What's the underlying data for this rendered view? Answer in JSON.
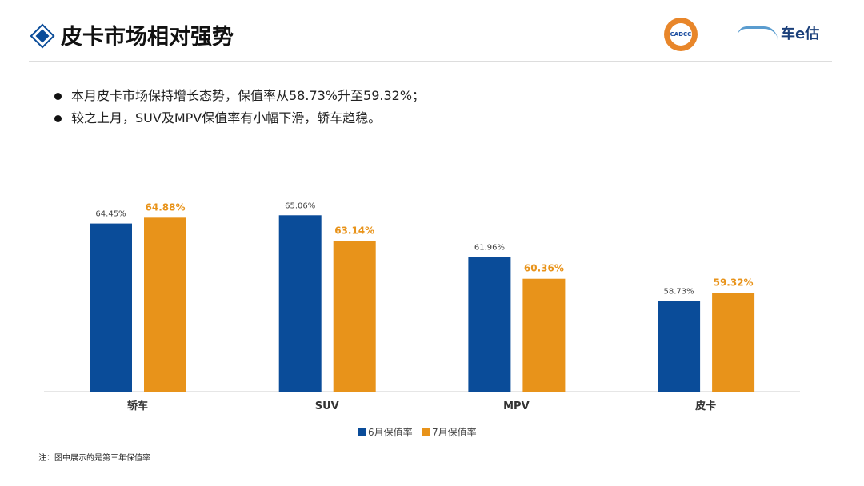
{
  "header": {
    "title": "皮卡市场相对强势",
    "logo1_text": "CADCC",
    "logo2_text": "车e估"
  },
  "bullets": [
    "本月皮卡市场保持增长态势，保值率从58.73%升至59.32%；",
    "较之上月，SUV及MPV保值率有小幅下滑，轿车趋稳。"
  ],
  "note": "注：图中展示的是第三年保值率",
  "colors": {
    "june": "#0a4c99",
    "july": "#e8931a",
    "accent": "#0a4c99"
  },
  "chart_data": {
    "type": "bar",
    "categories": [
      "轿车",
      "SUV",
      "MPV",
      "皮卡"
    ],
    "series": [
      {
        "name": "6月保值率",
        "values": [
          64.45,
          65.06,
          61.96,
          58.73
        ],
        "labels": [
          "64.45%",
          "65.06%",
          "61.96%",
          "58.73%"
        ]
      },
      {
        "name": "7月保值率",
        "values": [
          64.88,
          63.14,
          60.36,
          59.32
        ],
        "labels": [
          "64.88%",
          "63.14%",
          "60.36%",
          "59.32%"
        ]
      }
    ],
    "ylim": [
      52,
      66
    ],
    "grid": false,
    "legend": "bottom"
  }
}
